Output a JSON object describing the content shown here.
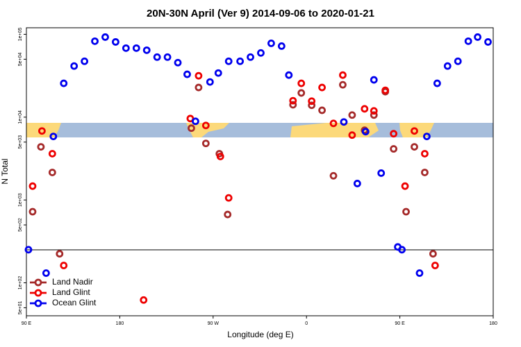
{
  "chart_data": {
    "type": "scatter",
    "title": "20N-30N April (Ver 9)   2014-09-06 to 2020-01-21",
    "xlabel": "Longitude (deg E)",
    "ylabel": "N Total",
    "xlim": [
      90,
      540
    ],
    "xticks": [
      {
        "value": 90,
        "label": "90 E"
      },
      180,
      {
        "value": 270,
        "label": "90 W"
      },
      {
        "value": 360,
        "label": "0"
      },
      {
        "value": 450,
        "label": "90 E"
      },
      {
        "value": 540,
        "label": "180"
      }
    ],
    "ylim": [
      40,
      120000
    ],
    "log_y": true,
    "yticks": [
      {
        "value": 50,
        "label": "5e+01"
      },
      {
        "value": 100,
        "label": "1e+02"
      },
      {
        "value": 500,
        "label": "5e+02"
      },
      {
        "value": 1000,
        "label": "1e+03"
      },
      {
        "value": 5000,
        "label": "5e+03"
      },
      {
        "value": 10000,
        "label": "1e+04"
      },
      {
        "value": 50000,
        "label": "5e+04"
      },
      {
        "value": 100000,
        "label": "1e+05"
      }
    ],
    "hline": 250,
    "legend": "bottom-left",
    "series": [
      {
        "name": "Land Nadir",
        "color": "#a52a2a",
        "x": [
          104,
          96,
          115,
          122,
          249,
          256,
          263,
          276,
          284,
          347,
          355,
          365,
          375,
          386,
          395,
          404,
          416,
          425,
          436,
          444,
          456,
          464,
          474,
          482
        ],
        "values": [
          4380,
          722,
          2150,
          224,
          7360,
          22800,
          4820,
          3620,
          668,
          14100,
          19600,
          13900,
          12100,
          1960,
          24600,
          10600,
          6950,
          10600,
          20300,
          4140,
          722,
          4380,
          2150,
          224
        ]
      },
      {
        "name": "Land Glint",
        "color": "#ee0000",
        "x": [
          105,
          96,
          115,
          126,
          203,
          248,
          256,
          263,
          277,
          285,
          347,
          355,
          365,
          375,
          386,
          395,
          404,
          416,
          425,
          436,
          444,
          455,
          464,
          474,
          484
        ],
        "values": [
          6810,
          1470,
          3620,
          162,
          62,
          9620,
          31600,
          7940,
          3350,
          1060,
          15800,
          25600,
          15600,
          22800,
          8410,
          32200,
          6070,
          12600,
          11900,
          21100,
          6310,
          1470,
          6810,
          3620,
          162
        ]
      },
      {
        "name": "Ocean Glint",
        "color": "#0000ee",
        "x": [
          92,
          109,
          116,
          126,
          136,
          146,
          156,
          166,
          176,
          186,
          196,
          206,
          216,
          226,
          236,
          245,
          253,
          267,
          275,
          285,
          296,
          306,
          316,
          326,
          336,
          343,
          396,
          409,
          417,
          425,
          432,
          448,
          452,
          469,
          476,
          486,
          496,
          506,
          516,
          525,
          535
        ],
        "values": [
          251,
          131,
          5850,
          25600,
          41400,
          47300,
          82600,
          92600,
          80900,
          68100,
          68100,
          64300,
          53100,
          53100,
          45500,
          32900,
          8910,
          26600,
          34100,
          47300,
          47300,
          53100,
          59600,
          77900,
          72100,
          32200,
          8750,
          1580,
          6680,
          28200,
          2110,
          271,
          251,
          131,
          5850,
          25600,
          41400,
          47300,
          82600,
          92600,
          80900
        ]
      }
    ]
  }
}
